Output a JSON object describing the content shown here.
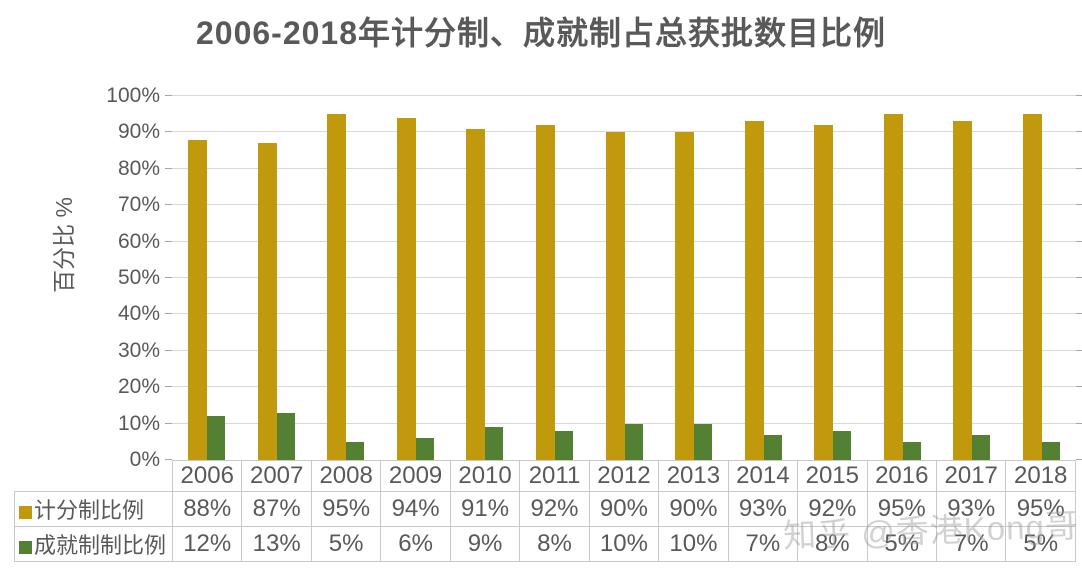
{
  "watermark": {
    "text": "知乎 @香港Kong哥"
  },
  "chart_data": {
    "type": "bar",
    "title": "2006-2018年计分制、成就制占总获批数目比例",
    "xlabel": "",
    "ylabel": "百分比 %",
    "ylim": [
      0,
      100
    ],
    "y_tick_step": 10,
    "y_tick_suffix": "%",
    "grid": true,
    "legend_position": "table-left",
    "categories": [
      "2006",
      "2007",
      "2008",
      "2009",
      "2010",
      "2011",
      "2012",
      "2013",
      "2014",
      "2015",
      "2016",
      "2017",
      "2018"
    ],
    "series": [
      {
        "name": "计分制比例",
        "color": "#c09a0c",
        "values": [
          88,
          87,
          95,
          94,
          91,
          92,
          90,
          90,
          93,
          92,
          95,
          93,
          95
        ],
        "unit": "%"
      },
      {
        "name": "成就制制比例",
        "color": "#538033",
        "values": [
          12,
          13,
          5,
          6,
          9,
          8,
          10,
          10,
          7,
          8,
          5,
          7,
          5
        ],
        "unit": "%"
      }
    ]
  },
  "colors": {
    "gridline": "#d9d9d9",
    "table_border": "#c9c7c7",
    "text": "#595959",
    "tick": "#a6a6a6"
  }
}
